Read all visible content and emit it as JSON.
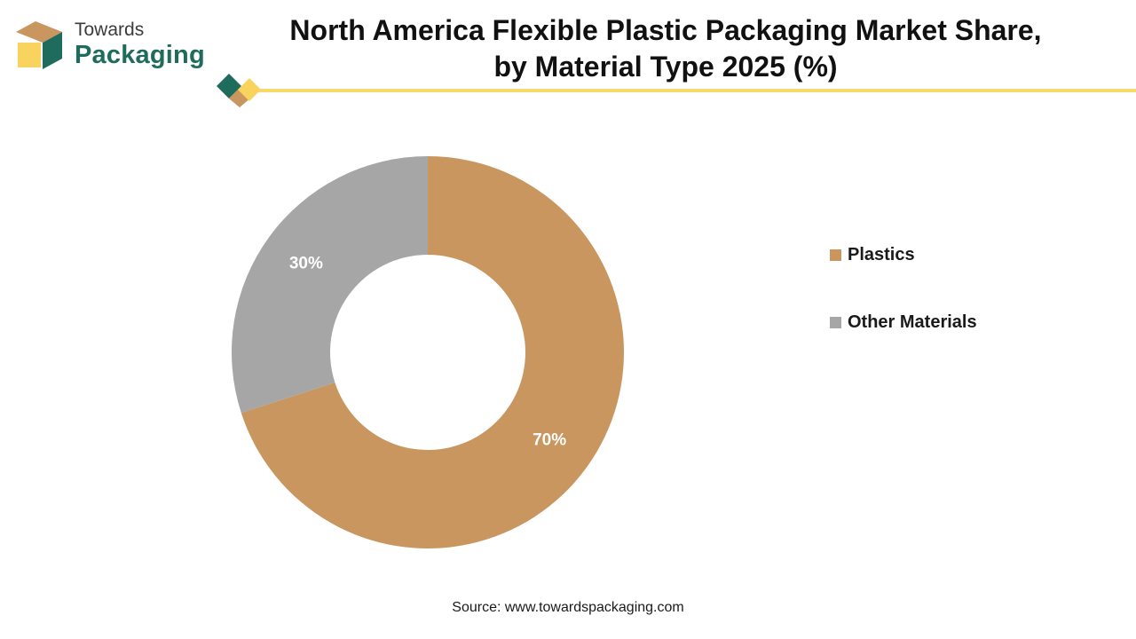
{
  "brand": {
    "line1": "Towards",
    "line2": "Packaging"
  },
  "title_line1": "North America Flexible Plastic Packaging Market Share,",
  "title_line2": "by Material Type 2025 (%)",
  "colors": {
    "plastics": "#c9965f",
    "other": "#a6a6a6",
    "accent_line": "#f5d96b",
    "brand_green": "#1f6b5c"
  },
  "chart_data": {
    "type": "pie",
    "variant": "donut",
    "title": "North America Flexible Plastic Packaging Market Share, by Material Type 2025 (%)",
    "categories": [
      "Plastics",
      "Other Materials"
    ],
    "values": [
      70,
      30
    ],
    "data_labels": [
      "70%",
      "30%"
    ],
    "legend_position": "right"
  },
  "legend": [
    {
      "label": "Plastics"
    },
    {
      "label": "Other Materials"
    }
  ],
  "source": "Source: www.towardspackaging.com"
}
